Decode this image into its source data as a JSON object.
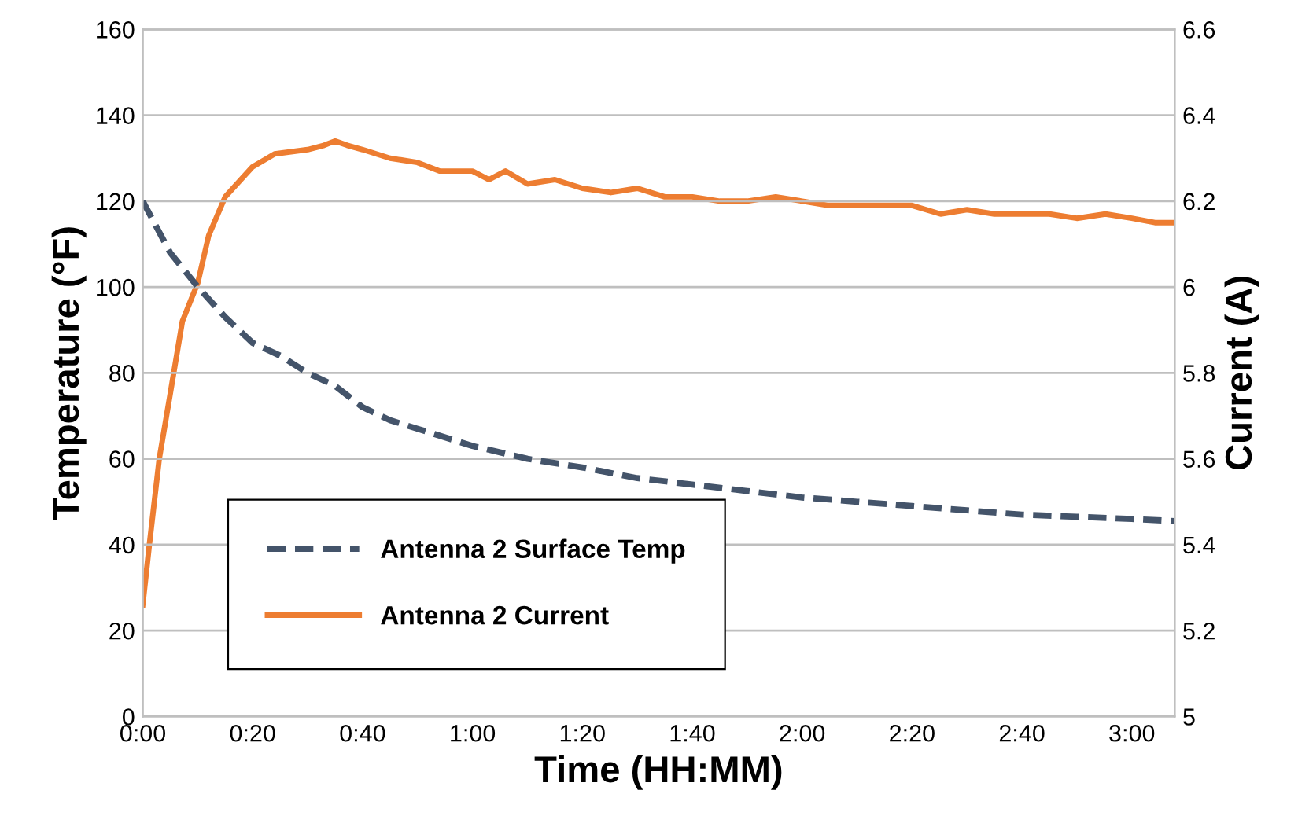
{
  "chart_data": {
    "type": "line",
    "xlabel": "Time (HH:MM)",
    "ylabel": "Temperature (°F)",
    "y2label": "Current (A)",
    "xlim": [
      0,
      3.13
    ],
    "xticks": [
      {
        "value": 0,
        "label": "0:00"
      },
      {
        "value": 0.3333,
        "label": "0:20"
      },
      {
        "value": 0.6667,
        "label": "0:40"
      },
      {
        "value": 1,
        "label": "1:00"
      },
      {
        "value": 1.3333,
        "label": "1:20"
      },
      {
        "value": 1.6667,
        "label": "1:40"
      },
      {
        "value": 2,
        "label": "2:00"
      },
      {
        "value": 2.3333,
        "label": "2:20"
      },
      {
        "value": 2.6667,
        "label": "2:40"
      },
      {
        "value": 3,
        "label": "3:00"
      }
    ],
    "ylim": [
      0,
      160
    ],
    "yticks": [
      0,
      20,
      40,
      60,
      80,
      100,
      120,
      140,
      160
    ],
    "y2lim": [
      5,
      6.6
    ],
    "y2ticks": [
      5,
      5.2,
      5.4,
      5.6,
      5.8,
      6,
      6.2,
      6.4,
      6.6
    ],
    "grid": "y",
    "legend": "bottom left",
    "marker": "none",
    "series": [
      {
        "name": "Antenna 2 Surface Temp",
        "color": "#44546a",
        "line_style": "dashed",
        "x": [
          0,
          0.083,
          0.167,
          0.25,
          0.333,
          0.417,
          0.5,
          0.583,
          0.667,
          0.75,
          0.833,
          1,
          1.167,
          1.333,
          1.5,
          1.667,
          1.833,
          2,
          2.167,
          2.333,
          2.5,
          2.667,
          2.833,
          3,
          3.13
        ],
        "values": [
          120,
          108,
          100,
          93,
          87,
          84,
          80,
          77,
          72,
          69,
          67,
          63,
          60,
          58,
          55.5,
          54,
          52.5,
          51,
          50,
          49,
          48,
          47,
          46.5,
          46,
          45.5
        ]
      },
      {
        "name": "Antenna 2 Current",
        "color": "#ed7d31",
        "line_style": "solid",
        "axis": "y2",
        "x": [
          0,
          0.02,
          0.05,
          0.083,
          0.12,
          0.167,
          0.2,
          0.25,
          0.333,
          0.4,
          0.5,
          0.55,
          0.583,
          0.62,
          0.667,
          0.75,
          0.833,
          0.9,
          1,
          1.05,
          1.1,
          1.167,
          1.25,
          1.333,
          1.42,
          1.5,
          1.583,
          1.667,
          1.75,
          1.833,
          1.92,
          2,
          2.08,
          2.167,
          2.25,
          2.333,
          2.42,
          2.5,
          2.583,
          2.667,
          2.75,
          2.833,
          2.92,
          3,
          3.07,
          3.13
        ],
        "values": [
          5.26,
          5.4,
          5.6,
          5.75,
          5.92,
          6.01,
          6.12,
          6.21,
          6.28,
          6.31,
          6.32,
          6.33,
          6.34,
          6.33,
          6.32,
          6.3,
          6.29,
          6.27,
          6.27,
          6.25,
          6.27,
          6.24,
          6.25,
          6.23,
          6.22,
          6.23,
          6.21,
          6.21,
          6.2,
          6.2,
          6.21,
          6.2,
          6.19,
          6.19,
          6.19,
          6.19,
          6.17,
          6.18,
          6.17,
          6.17,
          6.17,
          6.16,
          6.17,
          6.16,
          6.15,
          6.15
        ]
      }
    ]
  }
}
